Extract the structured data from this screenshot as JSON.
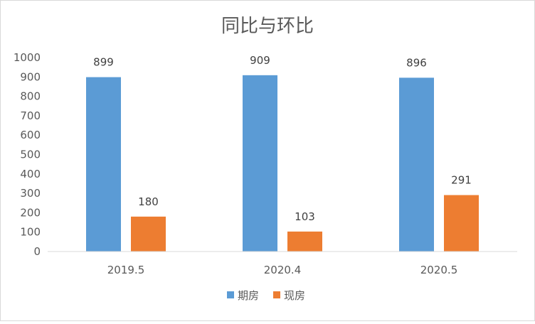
{
  "chart_data": {
    "type": "bar",
    "title": "同比与环比",
    "categories": [
      "2019.5",
      "2020.4",
      "2020.5"
    ],
    "series": [
      {
        "name": "期房",
        "values": [
          899,
          909,
          896
        ],
        "color": "#5b9bd5"
      },
      {
        "name": "现房",
        "values": [
          180,
          103,
          291
        ],
        "color": "#ed7d31"
      }
    ],
    "ylim": [
      0,
      1000
    ],
    "yticks": [
      "0",
      "100",
      "200",
      "300",
      "400",
      "500",
      "600",
      "700",
      "800",
      "900",
      "1000"
    ],
    "grid": false,
    "legend": "bottom"
  }
}
